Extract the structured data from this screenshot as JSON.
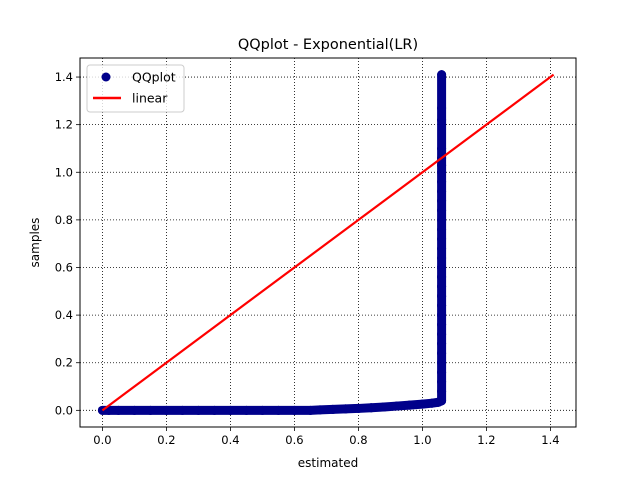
{
  "chart_data": {
    "type": "scatter",
    "title": "QQplot - Exponential(LR)",
    "xlabel": "estimated",
    "ylabel": "samples",
    "xlim": [
      -0.07,
      1.48
    ],
    "ylim": [
      -0.07,
      1.48
    ],
    "xticks": [
      "0.0",
      "0.2",
      "0.4",
      "0.6",
      "0.8",
      "1.0",
      "1.2",
      "1.4"
    ],
    "yticks": [
      "0.0",
      "0.2",
      "0.4",
      "0.6",
      "0.8",
      "1.0",
      "1.2",
      "1.4"
    ],
    "grid": true,
    "legend_position": "top-left",
    "series": [
      {
        "name": "QQplot",
        "kind": "scatter",
        "color": "#00008b",
        "x": [
          0.0,
          0.02,
          0.05,
          0.1,
          0.15,
          0.2,
          0.25,
          0.3,
          0.35,
          0.4,
          0.45,
          0.5,
          0.55,
          0.6,
          0.65,
          0.68,
          0.72,
          0.76,
          0.8,
          0.84,
          0.88,
          0.92,
          0.96,
          1.0,
          1.03,
          1.05,
          1.06,
          1.06,
          1.06,
          1.06,
          1.06,
          1.06,
          1.06,
          1.06,
          1.06,
          1.06,
          1.06,
          1.06,
          1.06,
          1.06,
          1.06,
          1.06,
          1.06,
          1.06,
          1.06,
          1.06,
          1.06,
          1.06,
          1.06,
          1.06,
          1.06,
          1.06,
          1.06,
          1.06,
          1.06,
          1.06,
          1.06
        ],
        "y": [
          0.0,
          0.0,
          0.0,
          0.0,
          0.0,
          0.0,
          0.0,
          0.0,
          0.0,
          0.0,
          0.0,
          0.0,
          0.0,
          0.0,
          0.0,
          0.002,
          0.004,
          0.006,
          0.008,
          0.011,
          0.014,
          0.018,
          0.022,
          0.026,
          0.03,
          0.034,
          0.04,
          0.08,
          0.12,
          0.16,
          0.2,
          0.24,
          0.28,
          0.32,
          0.36,
          0.4,
          0.44,
          0.48,
          0.52,
          0.56,
          0.6,
          0.64,
          0.68,
          0.72,
          0.76,
          0.8,
          0.84,
          0.88,
          0.92,
          0.96,
          1.0,
          1.03,
          1.06,
          1.1,
          1.22,
          1.27,
          1.41
        ]
      },
      {
        "name": "linear",
        "kind": "line",
        "color": "#ff0000",
        "x": [
          0.0,
          1.41
        ],
        "y": [
          0.0,
          1.41
        ]
      }
    ]
  }
}
